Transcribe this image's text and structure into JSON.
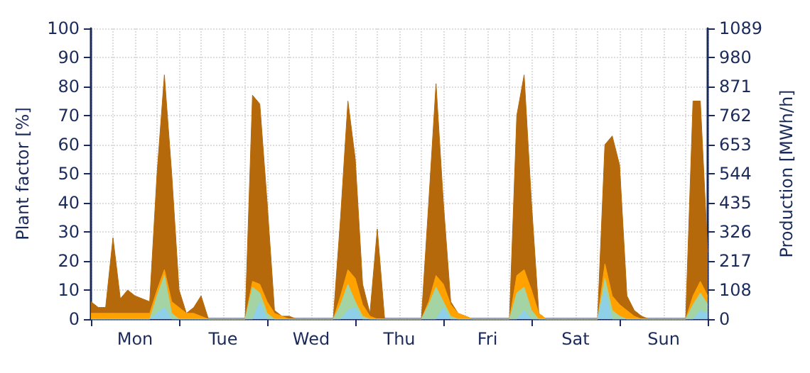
{
  "chart_data": {
    "type": "area",
    "ylabel": "Plant factor [%]",
    "y2label": "Production [MWh/h]",
    "categories": [
      null,
      null,
      null,
      null,
      null,
      null,
      "Mon",
      null,
      null,
      null,
      null,
      null,
      null,
      null,
      null,
      null,
      null,
      null,
      "Tue",
      null,
      null,
      null,
      null,
      null,
      null,
      null,
      null,
      null,
      null,
      null,
      "Wed",
      null,
      null,
      null,
      null,
      null,
      null,
      null,
      null,
      null,
      null,
      null,
      "Thu",
      null,
      null,
      null,
      null,
      null,
      null,
      null,
      null,
      null,
      null,
      null,
      "Fri",
      null,
      null,
      null,
      null,
      null,
      null,
      null,
      null,
      null,
      null,
      null,
      "Sat",
      null,
      null,
      null,
      null,
      null,
      null,
      null,
      null,
      null,
      null,
      null,
      "Sun",
      null,
      null,
      null,
      null,
      null,
      null
    ],
    "ylim": [
      0,
      100
    ],
    "yticks": [
      0,
      10,
      20,
      30,
      40,
      50,
      60,
      70,
      80,
      90,
      100
    ],
    "y2lim": [
      0,
      1089
    ],
    "y2ticks": [
      0,
      108,
      217,
      326,
      435,
      544,
      653,
      762,
      871,
      980,
      1089
    ],
    "grid": true,
    "marker": "none",
    "series": [
      {
        "color": "#b5690a",
        "values": [
          6,
          4,
          4,
          28,
          7,
          10,
          8,
          7,
          6,
          50,
          84,
          50,
          10,
          2,
          4,
          8,
          0,
          0,
          0,
          0,
          0,
          0,
          77,
          74,
          40,
          3,
          1,
          1,
          0,
          0,
          0,
          0,
          0,
          0,
          35,
          75,
          55,
          12,
          2,
          31,
          0,
          0,
          0,
          0,
          0,
          0,
          40,
          81,
          40,
          6,
          2,
          1,
          0,
          0,
          0,
          0,
          0,
          0,
          70,
          84,
          40,
          2,
          0,
          0,
          0,
          0,
          0,
          0,
          0,
          0,
          60,
          63,
          53,
          8,
          3,
          1,
          0,
          0,
          0,
          0,
          0,
          0,
          75,
          75,
          23
        ]
      },
      {
        "color": "#ffa200",
        "values": [
          2,
          2,
          2,
          2,
          2,
          2,
          2,
          2,
          2,
          10,
          17,
          6,
          4,
          2,
          2,
          1,
          0,
          0,
          0,
          0,
          0,
          0,
          13,
          12,
          6,
          2,
          1,
          0,
          0,
          0,
          0,
          0,
          0,
          0,
          8,
          17,
          14,
          5,
          1,
          0,
          0,
          0,
          0,
          0,
          0,
          0,
          6,
          15,
          12,
          5,
          2,
          1,
          0,
          0,
          0,
          0,
          0,
          0,
          15,
          17,
          10,
          2,
          0,
          0,
          0,
          0,
          0,
          0,
          0,
          0,
          19,
          8,
          5,
          3,
          1,
          0,
          0,
          0,
          0,
          0,
          0,
          0,
          8,
          13,
          8
        ]
      },
      {
        "color": "#a4d4a4",
        "values": [
          0,
          0,
          0,
          0,
          0,
          0,
          0,
          0,
          0,
          8,
          15,
          2,
          0,
          0,
          0,
          0,
          0,
          0,
          0,
          0,
          0,
          0,
          11,
          9,
          2,
          0,
          0,
          0,
          0,
          0,
          0,
          0,
          0,
          0,
          5,
          12,
          6,
          1,
          0,
          0,
          0,
          0,
          0,
          0,
          0,
          0,
          5,
          11,
          6,
          1,
          0,
          0,
          0,
          0,
          0,
          0,
          0,
          0,
          9,
          11,
          3,
          0,
          0,
          0,
          0,
          0,
          0,
          0,
          0,
          0,
          14,
          3,
          1,
          0,
          0,
          0,
          0,
          0,
          0,
          0,
          0,
          0,
          5,
          9,
          5
        ]
      },
      {
        "color": "#8ed0e8",
        "values": [
          0,
          0,
          0,
          0,
          0,
          0,
          0,
          0,
          0,
          2,
          4,
          0,
          0,
          0,
          0,
          0,
          0,
          0,
          0,
          0,
          0,
          0,
          0,
          6,
          0,
          0,
          0,
          0,
          0,
          0,
          0,
          0,
          0,
          0,
          0,
          3,
          4,
          0,
          0,
          0,
          0,
          0,
          0,
          0,
          0,
          0,
          0,
          0,
          4,
          0,
          0,
          0,
          0,
          0,
          0,
          0,
          0,
          0,
          0,
          3,
          0,
          0,
          0,
          0,
          0,
          0,
          0,
          0,
          0,
          0,
          10,
          0,
          0,
          0,
          0,
          0,
          0,
          0,
          0,
          0,
          0,
          0,
          0,
          3,
          2
        ]
      }
    ]
  }
}
